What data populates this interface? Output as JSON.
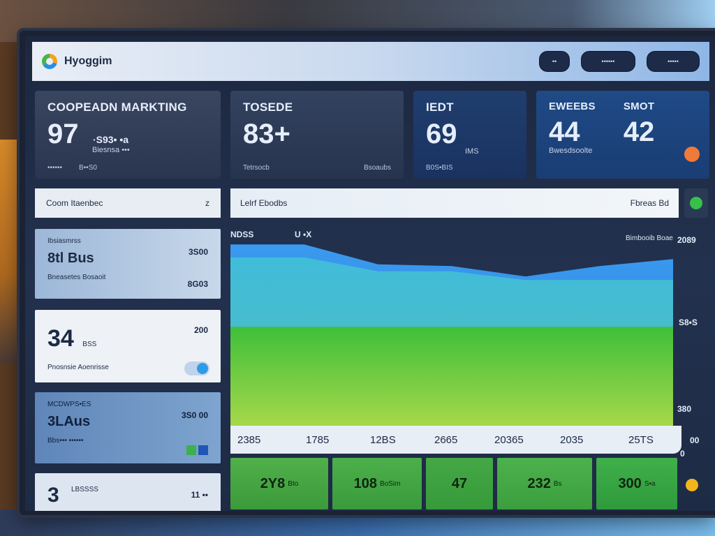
{
  "app": {
    "title": "Hyoggim"
  },
  "topbar": {
    "buttons": [
      "••",
      "••••••",
      "•••••"
    ]
  },
  "kpis": [
    {
      "label": "COOPEADN MARKTING",
      "value": "97",
      "sub": "·S93• •a",
      "note": "Biesnsa •••",
      "foot_left": "••••••",
      "foot_right": "B••S0"
    },
    {
      "label": "TOSEDE",
      "value": "83+",
      "foot_left": "Tetrsocb",
      "foot_right": "Bsoaubs"
    },
    {
      "label": "IEDT",
      "value": "69",
      "note": "IMS",
      "foot_left": "B0S•BIS"
    },
    {
      "label_a": "EWEEBS",
      "value_a": "44",
      "label_b": "SMOT",
      "value_b": "42",
      "note": "Bwesdsoolte"
    }
  ],
  "left_panel": {
    "header": "Coom Itaenbec",
    "header_mark": "z",
    "cards": [
      {
        "small": "Ibsiasmrss",
        "title": "8tl Bus",
        "caption": "Bneasetes Bosaoit",
        "right_top": "3S00",
        "right_bottom": "8G03"
      },
      {
        "big": "34",
        "unit": "BSS",
        "caption": "Pnosnsie Aoenrisse",
        "right_top": "200"
      },
      {
        "small": "MCDWPS•ES",
        "title": "3LAus",
        "caption": "Bbs••• ••••••",
        "right_top": "3S0 00"
      },
      {
        "big": "3",
        "caption": "LBSSSS",
        "right_top": "11 ••"
      }
    ]
  },
  "chart": {
    "header": "Lelrf Ebodbs",
    "header_right": "Fbreas Bd",
    "label_left": "NDSS",
    "label_mid": "U •X",
    "label_right": "Bimbooib Boae",
    "y_labels": [
      "2089",
      "S8•S",
      "380",
      "0",
      "00"
    ],
    "x_labels": [
      "2385",
      "1785",
      "12BS",
      "2665",
      "20365",
      "2035",
      "25TS"
    ],
    "colors": {
      "blue": "#3a9af0",
      "cyan": "#49c0d8",
      "green": "#5ccf3a"
    }
  },
  "chart_data": {
    "type": "area",
    "title": "Lelrf Ebodbs",
    "categories": [
      "2385",
      "1785",
      "12BS",
      "2665",
      "20365",
      "2035",
      "25TS"
    ],
    "series": [
      {
        "name": "NDSS",
        "values": [
          2089,
          2089,
          1860,
          1840,
          1720,
          1840,
          1920
        ]
      },
      {
        "name": "U •X",
        "values": [
          1940,
          1940,
          1780,
          1780,
          1680,
          1680,
          1680
        ]
      },
      {
        "name": "base",
        "values": [
          1140,
          1140,
          1140,
          1140,
          1140,
          1140,
          1140
        ]
      }
    ],
    "xlabel": "",
    "ylabel": "",
    "ylim": [
      0,
      2300
    ]
  },
  "tiles": [
    {
      "value": "2Y8",
      "sub": "Bto"
    },
    {
      "value": "108",
      "sub": "BoSim"
    },
    {
      "value": "47",
      "sub": ""
    },
    {
      "value": "232",
      "sub": "Bs"
    },
    {
      "value": "300",
      "sub": "S•a"
    }
  ]
}
